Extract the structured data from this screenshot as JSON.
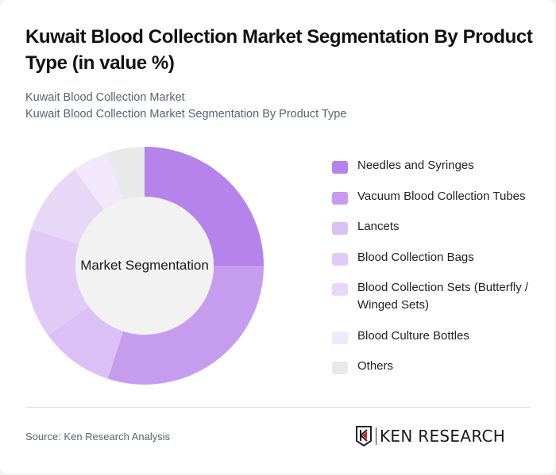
{
  "header": {
    "title": "Kuwait Blood Collection Market Segmentation By Product Type (in value %)",
    "subtitle_line1": "Kuwait Blood Collection Market",
    "subtitle_line2": "Kuwait Blood Collection Market Segmentation By Product Type"
  },
  "donut": {
    "center_label": "Market Segmentation",
    "center_fill": "#f2f2f2"
  },
  "legend": {
    "items": [
      {
        "label": "Needles and Syringes",
        "color": "#b583e9"
      },
      {
        "label": "Vacuum Blood Collection Tubes",
        "color": "#c69cee"
      },
      {
        "label": "Lancets",
        "color": "#dbc0f6"
      },
      {
        "label": "Blood Collection Bags",
        "color": "#e1cbf6"
      },
      {
        "label": "Blood Collection Sets (Butterfly / Winged Sets)",
        "color": "#e8d8f8"
      },
      {
        "label": "Blood Culture Bottles",
        "color": "#f1e9fb"
      },
      {
        "label": "Others",
        "color": "#e9e9e9"
      }
    ]
  },
  "footer": {
    "source": "Source: Ken Research Analysis",
    "logo_text": "KEN RESEARCH"
  },
  "chart_data": {
    "type": "pie",
    "variant": "donut",
    "title": "Kuwait Blood Collection Market Segmentation By Product Type (in value %)",
    "subtitle": "Kuwait Blood Collection Market Segmentation By Product Type",
    "center_label": "Market Segmentation",
    "categories": [
      "Needles and Syringes",
      "Vacuum Blood Collection Tubes",
      "Lancets",
      "Blood Collection Bags",
      "Blood Collection Sets (Butterfly / Winged Sets)",
      "Blood Culture Bottles",
      "Others"
    ],
    "values": [
      25,
      30,
      10,
      15,
      10,
      5,
      5
    ],
    "colors": [
      "#b583e9",
      "#c69cee",
      "#dbc0f6",
      "#e1cbf6",
      "#e8d8f8",
      "#f1e9fb",
      "#e9e9e9"
    ],
    "unit": "%",
    "start_angle": "12 o'clock, clockwise",
    "legend_position": "right",
    "source": "Source: Ken Research Analysis"
  }
}
